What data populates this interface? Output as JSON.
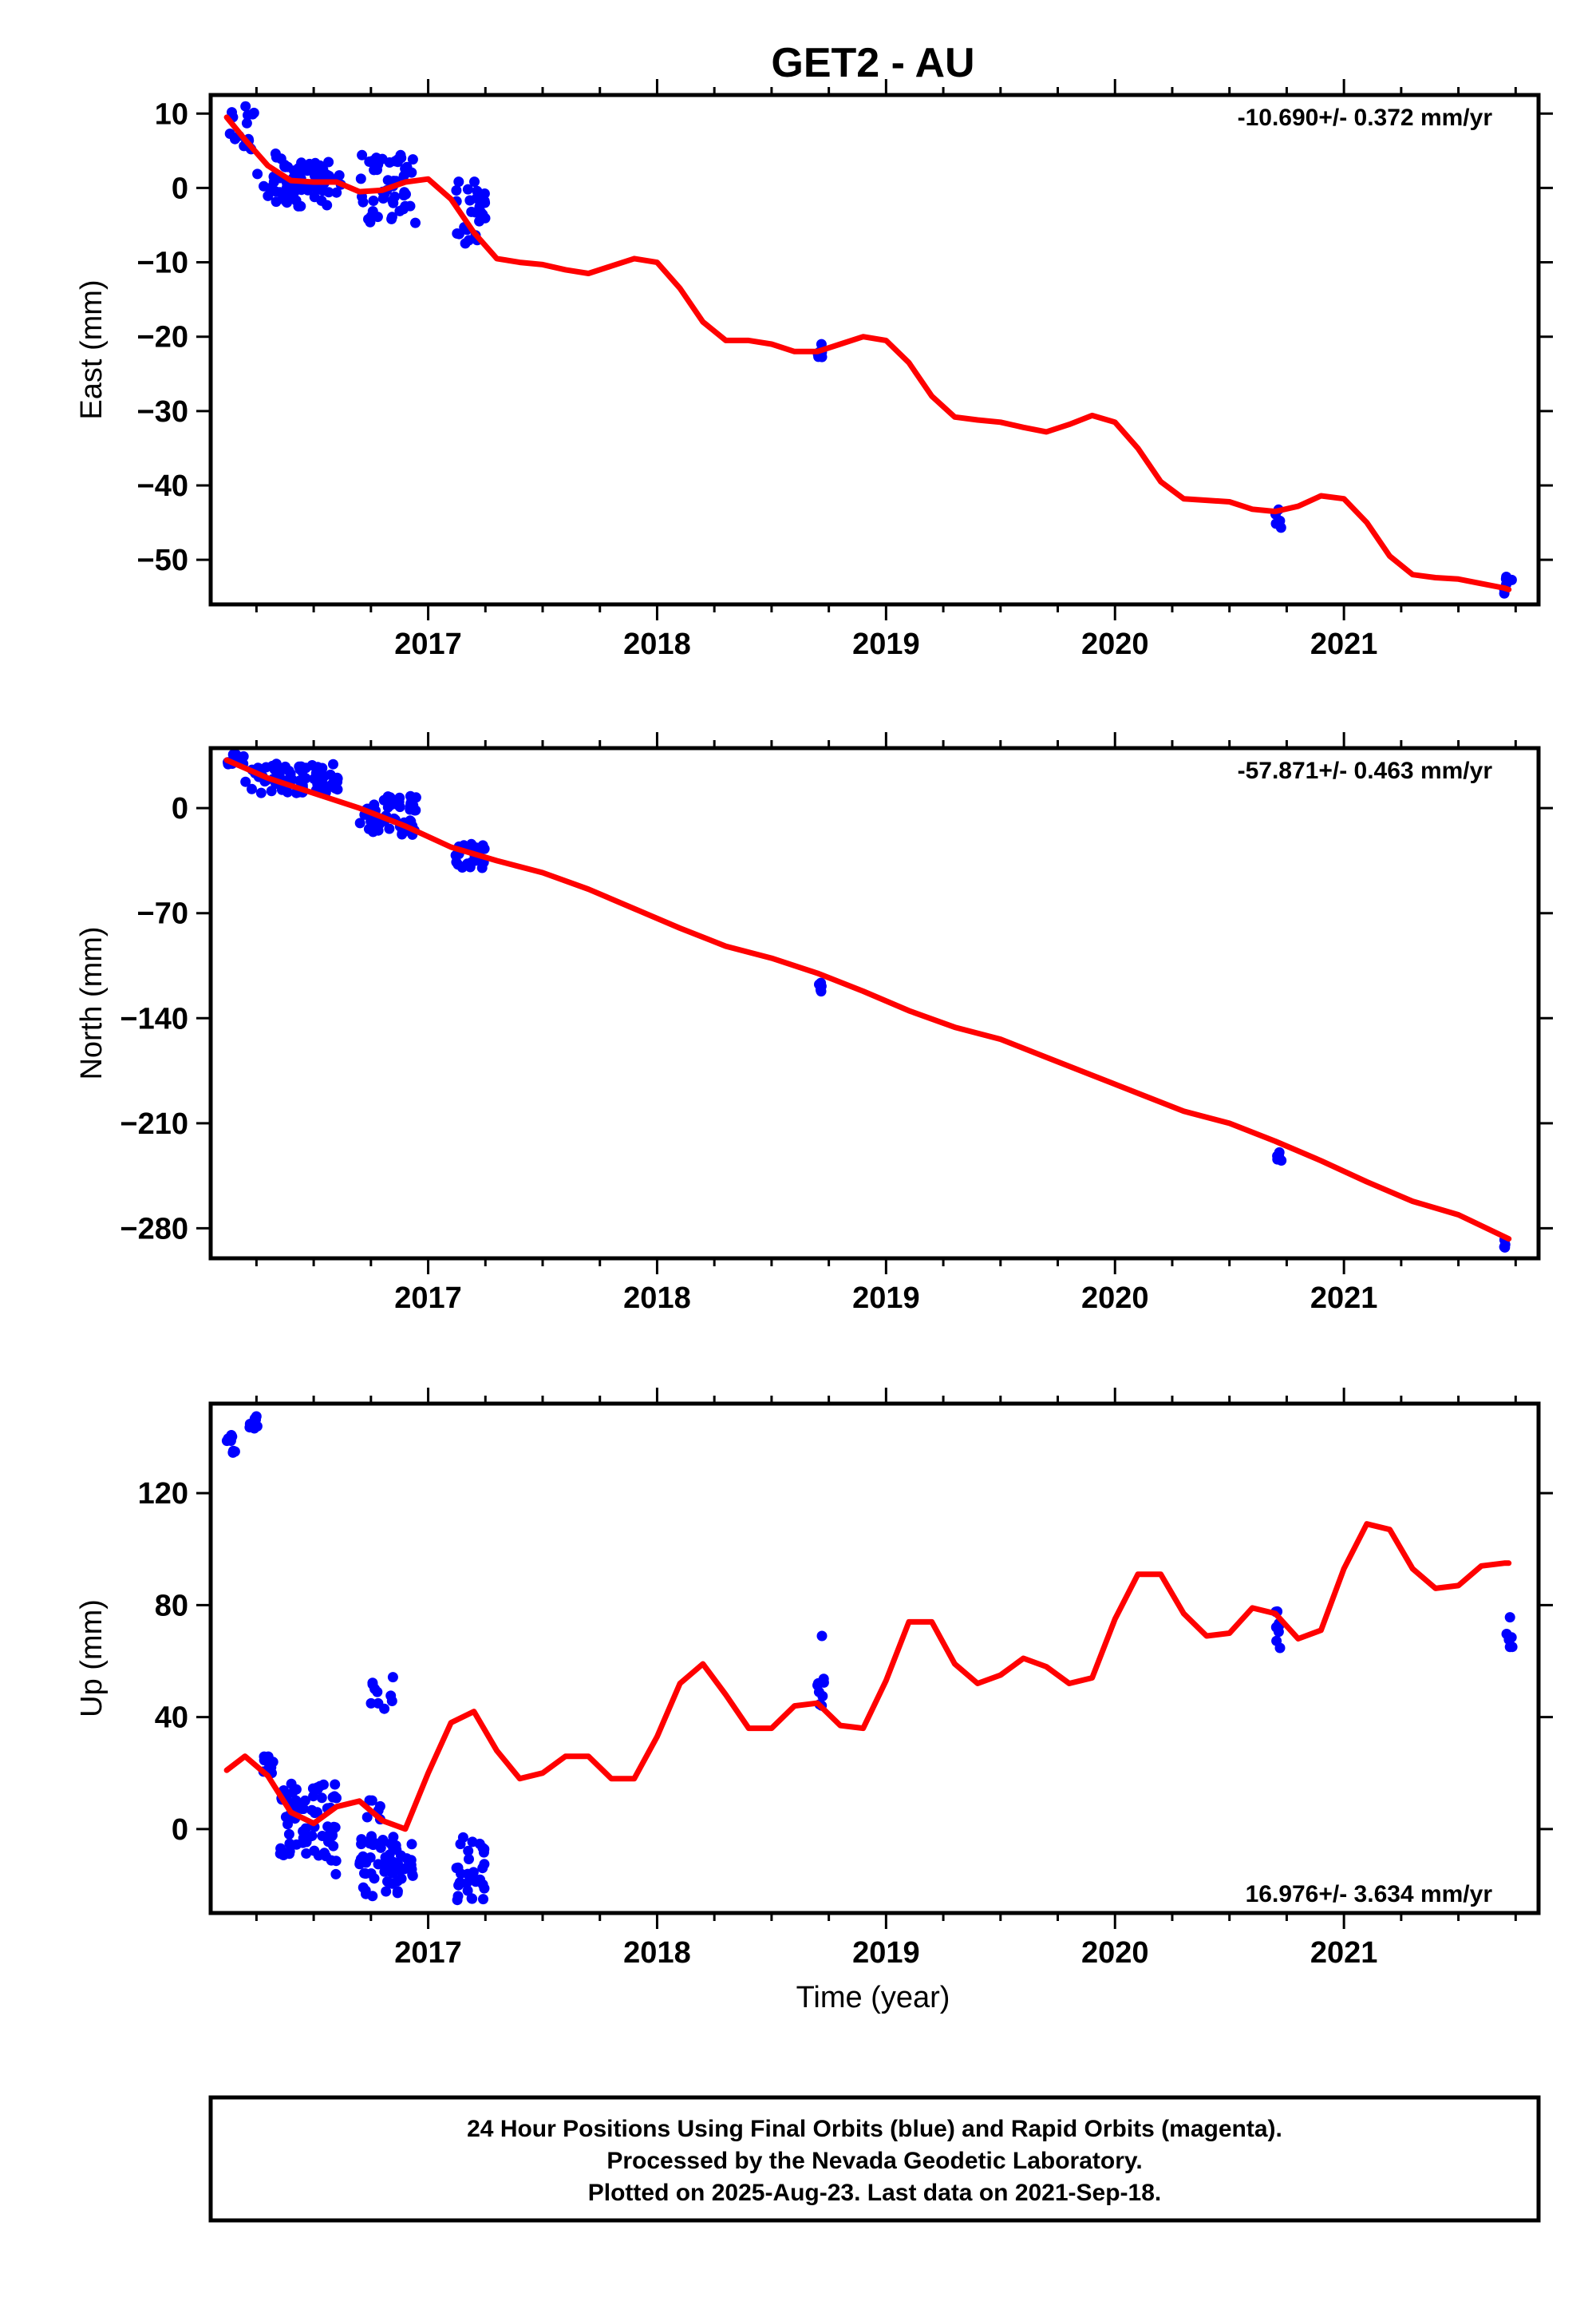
{
  "title": "GET2 - AU",
  "xlabel": "Time (year)",
  "footer": {
    "line1": "24 Hour Positions Using Final Orbits (blue) and Rapid Orbits (magenta).",
    "line2": "Processed by the Nevada Geodetic Laboratory.",
    "line3": "Plotted on 2025-Aug-23. Last data on 2021-Sep-18."
  },
  "colors": {
    "points": "#0000ff",
    "fit": "#ff0000",
    "frame": "#000000"
  },
  "chart_data": [
    {
      "type": "scatter",
      "name": "east",
      "ylabel": "East (mm)",
      "rate_label": "-10.690+/- 0.372 mm/yr",
      "rate_position": "top-right",
      "xlim": [
        2016.05,
        2021.85
      ],
      "ylim": [
        -56,
        12.5
      ],
      "x_ticks": [
        2017,
        2018,
        2019,
        2020,
        2021
      ],
      "y_ticks": [
        10,
        0,
        -10,
        -20,
        -30,
        -40,
        -50
      ],
      "y_tick_labels": [
        "10",
        "0",
        "−10",
        "−20",
        "−30",
        "−40",
        "−50"
      ],
      "clusters": [
        {
          "x": [
            2016.12,
            2016.25
          ],
          "y": [
            11,
            4
          ],
          "n": 16
        },
        {
          "x": [
            2016.25,
            2016.45
          ],
          "y": [
            5,
            -2
          ],
          "n": 24
        },
        {
          "x": [
            2016.35,
            2016.62
          ],
          "y": [
            3.5,
            -2.5
          ],
          "n": 60
        },
        {
          "x": [
            2016.7,
            2016.95
          ],
          "y": [
            4.5,
            -5
          ],
          "n": 50
        },
        {
          "x": [
            2017.12,
            2017.25
          ],
          "y": [
            1,
            -7.5
          ],
          "n": 28
        },
        {
          "x": [
            2018.7,
            2018.73
          ],
          "y": [
            -19.5,
            -23
          ],
          "n": 6
        },
        {
          "x": [
            2020.7,
            2020.73
          ],
          "y": [
            -43,
            -46
          ],
          "n": 5
        },
        {
          "x": [
            2021.7,
            2021.74
          ],
          "y": [
            -51.5,
            -55
          ],
          "n": 6
        }
      ],
      "fit": {
        "x": [
          2016.12,
          2016.2,
          2016.3,
          2016.4,
          2016.5,
          2016.6,
          2016.7,
          2016.8,
          2016.9,
          2017.0,
          2017.1,
          2017.2,
          2017.3,
          2017.4,
          2017.5,
          2017.6,
          2017.7,
          2017.8,
          2017.9,
          2018.0,
          2018.1,
          2018.2,
          2018.3,
          2018.4,
          2018.5,
          2018.6,
          2018.7,
          2018.8,
          2018.9,
          2019.0,
          2019.1,
          2019.2,
          2019.3,
          2019.4,
          2019.5,
          2019.6,
          2019.7,
          2019.8,
          2019.9,
          2020.0,
          2020.1,
          2020.2,
          2020.3,
          2020.4,
          2020.5,
          2020.6,
          2020.7,
          2020.8,
          2020.9,
          2021.0,
          2021.1,
          2021.2,
          2021.3,
          2021.4,
          2021.5,
          2021.6,
          2021.7,
          2021.72
        ],
        "y": [
          9.5,
          6.5,
          3,
          1,
          0.8,
          0.8,
          -0.5,
          -0.3,
          0.8,
          1.2,
          -1.5,
          -6,
          -9.5,
          -10,
          -10.3,
          -11,
          -11.5,
          -10.5,
          -9.5,
          -10,
          -13.5,
          -18,
          -20.5,
          -20.5,
          -21,
          -22,
          -22,
          -21,
          -20,
          -20.5,
          -23.5,
          -28,
          -30.8,
          -31.2,
          -31.5,
          -32.2,
          -32.8,
          -31.8,
          -30.6,
          -31.5,
          -35,
          -39.5,
          -41.8,
          -42,
          -42.2,
          -43.2,
          -43.5,
          -42.8,
          -41.4,
          -41.8,
          -45,
          -49.5,
          -52,
          -52.4,
          -52.6,
          -53.2,
          -53.8,
          -54
        ]
      }
    },
    {
      "type": "scatter",
      "name": "north",
      "ylabel": "North (mm)",
      "rate_label": "-57.871+/- 0.463 mm/yr",
      "rate_position": "top-right",
      "xlim": [
        2016.05,
        2021.85
      ],
      "ylim": [
        -300,
        40
      ],
      "x_ticks": [
        2017,
        2018,
        2019,
        2020,
        2021
      ],
      "y_ticks": [
        0,
        -70,
        -140,
        -210,
        -280
      ],
      "y_tick_labels": [
        "0",
        "−70",
        "−140",
        "−210",
        "−280"
      ],
      "clusters": [
        {
          "x": [
            2016.12,
            2016.2
          ],
          "y": [
            36,
            29
          ],
          "n": 10
        },
        {
          "x": [
            2016.2,
            2016.62
          ],
          "y": [
            30,
            10
          ],
          "n": 70
        },
        {
          "x": [
            2016.7,
            2016.95
          ],
          "y": [
            8,
            -18
          ],
          "n": 60
        },
        {
          "x": [
            2017.12,
            2017.25
          ],
          "y": [
            -22,
            -40
          ],
          "n": 24
        },
        {
          "x": [
            2018.7,
            2018.73
          ],
          "y": [
            -113,
            -124
          ],
          "n": 5
        },
        {
          "x": [
            2020.7,
            2020.73
          ],
          "y": [
            -229,
            -236
          ],
          "n": 5
        },
        {
          "x": [
            2021.7,
            2021.74
          ],
          "y": [
            -287,
            -295
          ],
          "n": 5
        }
      ],
      "fit": {
        "x": [
          2016.12,
          2016.3,
          2016.5,
          2016.7,
          2016.9,
          2017.1,
          2017.3,
          2017.5,
          2017.7,
          2017.9,
          2018.1,
          2018.3,
          2018.5,
          2018.7,
          2018.9,
          2019.1,
          2019.3,
          2019.5,
          2019.7,
          2019.9,
          2020.1,
          2020.3,
          2020.5,
          2020.7,
          2020.9,
          2021.1,
          2021.3,
          2021.5,
          2021.72
        ],
        "y": [
          32,
          20,
          10,
          0,
          -12,
          -26,
          -35,
          -43,
          -54,
          -67,
          -80,
          -92,
          -100,
          -110,
          -122,
          -135,
          -146,
          -154,
          -166,
          -178,
          -190,
          -202,
          -210,
          -222,
          -235,
          -249,
          -262,
          -271,
          -287
        ]
      }
    },
    {
      "type": "scatter",
      "name": "up",
      "ylabel": "Up (mm)",
      "rate_label": "16.976+/- 3.634 mm/yr",
      "rate_position": "bottom-right",
      "xlim": [
        2016.05,
        2021.85
      ],
      "ylim": [
        -30,
        152
      ],
      "x_ticks": [
        2017,
        2018,
        2019,
        2020,
        2021
      ],
      "y_ticks": [
        120,
        80,
        40,
        0
      ],
      "y_tick_labels": [
        "120",
        "80",
        "40",
        "0"
      ],
      "clusters": [
        {
          "x": [
            2016.12,
            2016.16
          ],
          "y": [
            142,
            134
          ],
          "n": 8
        },
        {
          "x": [
            2016.22,
            2016.26
          ],
          "y": [
            148,
            143
          ],
          "n": 8
        },
        {
          "x": [
            2016.28,
            2016.33
          ],
          "y": [
            28,
            20
          ],
          "n": 8
        },
        {
          "x": [
            2016.35,
            2016.6
          ],
          "y": [
            17,
            -10
          ],
          "n": 70
        },
        {
          "x": [
            2016.55,
            2016.6
          ],
          "y": [
            -8,
            -17
          ],
          "n": 4
        },
        {
          "x": [
            2016.7,
            2016.95
          ],
          "y": [
            -2,
            -24
          ],
          "n": 60
        },
        {
          "x": [
            2016.72,
            2016.85
          ],
          "y": [
            55,
            42
          ],
          "n": 10
        },
        {
          "x": [
            2016.72,
            2016.8
          ],
          "y": [
            13,
            3
          ],
          "n": 6
        },
        {
          "x": [
            2017.12,
            2017.25
          ],
          "y": [
            -2,
            -27
          ],
          "n": 30
        },
        {
          "x": [
            2018.7,
            2018.73
          ],
          "y": [
            56,
            44
          ],
          "n": 8
        },
        {
          "x": [
            2020.7,
            2020.73
          ],
          "y": [
            79,
            63
          ],
          "n": 8
        },
        {
          "x": [
            2021.7,
            2021.74
          ],
          "y": [
            76,
            65
          ],
          "n": 6
        }
      ],
      "single_points": {
        "x": [
          2018.72
        ],
        "y": [
          69
        ]
      },
      "fit": {
        "x": [
          2016.12,
          2016.2,
          2016.3,
          2016.4,
          2016.5,
          2016.6,
          2016.7,
          2016.8,
          2016.9,
          2017.0,
          2017.1,
          2017.2,
          2017.3,
          2017.4,
          2017.5,
          2017.6,
          2017.7,
          2017.8,
          2017.9,
          2018.0,
          2018.1,
          2018.2,
          2018.3,
          2018.4,
          2018.5,
          2018.6,
          2018.7,
          2018.8,
          2018.9,
          2019.0,
          2019.1,
          2019.2,
          2019.3,
          2019.4,
          2019.5,
          2019.6,
          2019.7,
          2019.8,
          2019.9,
          2020.0,
          2020.1,
          2020.2,
          2020.3,
          2020.4,
          2020.5,
          2020.6,
          2020.7,
          2020.8,
          2020.9,
          2021.0,
          2021.1,
          2021.2,
          2021.3,
          2021.4,
          2021.5,
          2021.6,
          2021.7,
          2021.72
        ],
        "y": [
          21,
          26,
          19,
          6,
          2,
          8,
          10,
          3,
          0,
          20,
          38,
          42,
          28,
          18,
          20,
          26,
          26,
          18,
          18,
          33,
          52,
          59,
          48,
          36,
          36,
          44,
          45,
          37,
          36,
          53,
          74,
          74,
          59,
          52,
          55,
          61,
          58,
          52,
          54,
          75,
          91,
          91,
          77,
          69,
          70,
          79,
          77,
          68,
          71,
          93,
          109,
          107,
          93,
          86,
          87,
          94,
          95,
          95
        ]
      }
    }
  ]
}
